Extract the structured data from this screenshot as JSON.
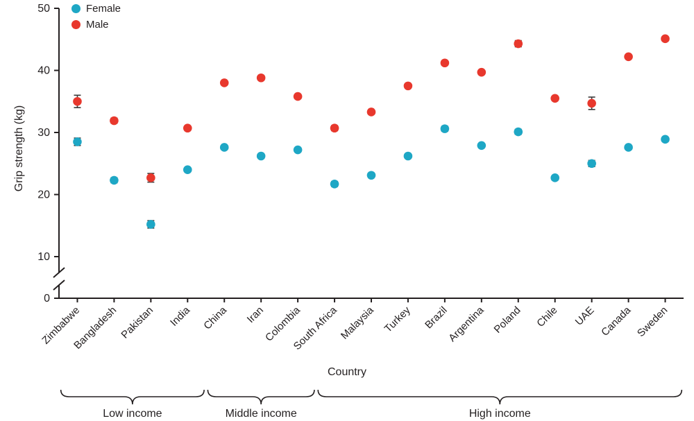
{
  "colors": {
    "female": "#1ea7c5",
    "male": "#e8382d",
    "axis": "#231f20",
    "errorbar": "#3a3a3a",
    "text": "#231f20"
  },
  "legend": {
    "female_label": "Female",
    "male_label": "Male"
  },
  "chart_data": {
    "type": "scatter",
    "title": "",
    "xlabel": "Country",
    "ylabel": "Grip strength (kg)",
    "ylim": [
      0,
      50
    ],
    "yticks": [
      0,
      10,
      20,
      30,
      40,
      50
    ],
    "axis_break": {
      "between": [
        0,
        10
      ]
    },
    "grid": false,
    "legend_position": "top-left",
    "categories": [
      "Zimbabwe",
      "Bangladesh",
      "Pakistan",
      "India",
      "China",
      "Iran",
      "Colombia",
      "South Africa",
      "Malaysia",
      "Turkey",
      "Brazil",
      "Argentina",
      "Poland",
      "Chile",
      "UAE",
      "Canada",
      "Sweden"
    ],
    "series": [
      {
        "name": "Female",
        "color_key": "female",
        "values": [
          28.5,
          22.3,
          15.2,
          24.0,
          27.6,
          26.2,
          27.2,
          21.7,
          23.1,
          26.2,
          30.6,
          27.9,
          30.1,
          22.7,
          25.0,
          27.6,
          28.9
        ],
        "errors": [
          0.6,
          0.4,
          0.6,
          0.3,
          0.3,
          0.3,
          0.3,
          0.4,
          0.3,
          0.3,
          0.4,
          0.3,
          0.4,
          0.3,
          0.5,
          0.3,
          0.3
        ]
      },
      {
        "name": "Male",
        "color_key": "male",
        "values": [
          35.0,
          31.9,
          22.7,
          30.7,
          38.0,
          38.8,
          35.8,
          30.7,
          33.3,
          37.5,
          41.2,
          39.7,
          44.3,
          35.5,
          34.7,
          42.2,
          45.1
        ],
        "errors": [
          1.0,
          0.4,
          0.7,
          0.3,
          0.3,
          0.3,
          0.3,
          0.4,
          0.3,
          0.3,
          0.3,
          0.3,
          0.5,
          0.3,
          1.0,
          0.3,
          0.3
        ]
      }
    ],
    "groups": [
      {
        "label": "Low income",
        "start_index": 0,
        "end_index": 3
      },
      {
        "label": "Middle income",
        "start_index": 4,
        "end_index": 6
      },
      {
        "label": "High income",
        "start_index": 7,
        "end_index": 16
      }
    ]
  }
}
